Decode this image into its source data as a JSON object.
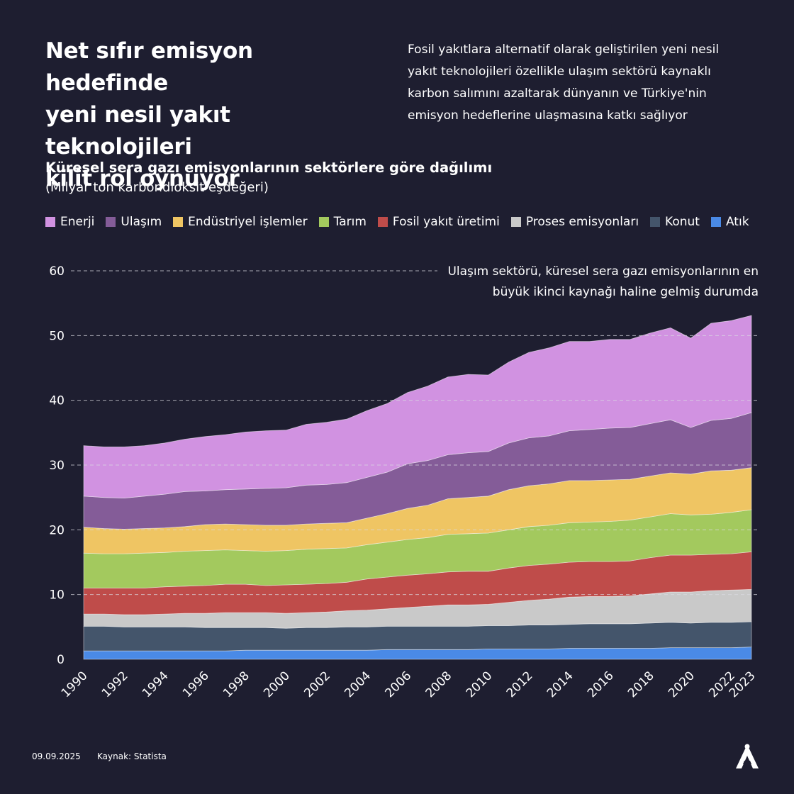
{
  "header": {
    "title": "Net sıfır emisyon hedefinde\nyeni nesil yakıt teknolojileri\nkilit rol oynuyor",
    "lead": "Fosil yakıtlara alternatif olarak geliştirilen yeni nesil\nyakıt teknolojileri özellikle ulaşım sektörü kaynaklı\nkarbon salımını azaltarak dünyanın ve Türkiye'nin\nemisyon hedeflerine ulaşmasına katkı sağlıyor"
  },
  "legend": [
    {
      "label": "Enerji",
      "color": "#d192e1"
    },
    {
      "label": "Ulaşım",
      "color": "#845c98"
    },
    {
      "label": "Endüstriyel işlemler",
      "color": "#efc563"
    },
    {
      "label": "Tarım",
      "color": "#a3c95e"
    },
    {
      "label": "Fosil yakıt üretimi",
      "color": "#bf4c4a"
    },
    {
      "label": "Proses emisyonları",
      "color": "#c9c9c9"
    },
    {
      "label": "Konut",
      "color": "#44556b"
    },
    {
      "label": "Atık",
      "color": "#4a8ae6"
    }
  ],
  "chart_data": {
    "type": "area",
    "stacked": true,
    "title": "Küresel sera gazı emisyonlarının sektörlere göre dağılımı",
    "subtitle": "(Milyar ton karbondioksit eşdeğeri)",
    "annotation": "Ulaşım sektörü, küresel sera gazı emisyonlarının en\nbüyük ikinci kaynağı haline gelmiş durumda",
    "x_ticks": [
      "1990",
      "1992",
      "1994",
      "1996",
      "1998",
      "2000",
      "2002",
      "2004",
      "2006",
      "2008",
      "2010",
      "2012",
      "2014",
      "2016",
      "2018",
      "2020",
      "2022",
      "2023"
    ],
    "ylim": [
      0,
      60
    ],
    "y_ticks": [
      "0",
      "10",
      "20",
      "30",
      "40",
      "50",
      "60"
    ],
    "grid": "horizontal dashed",
    "legend_position": "top",
    "x": [
      1990,
      1991,
      1992,
      1993,
      1994,
      1995,
      1996,
      1997,
      1998,
      1999,
      2000,
      2001,
      2002,
      2003,
      2004,
      2005,
      2006,
      2007,
      2008,
      2009,
      2010,
      2011,
      2012,
      2013,
      2014,
      2015,
      2016,
      2017,
      2018,
      2019,
      2020,
      2021,
      2022,
      2023
    ],
    "series": [
      {
        "name": "Atık",
        "color": "#4a8ae6",
        "values": [
          1.3,
          1.3,
          1.3,
          1.3,
          1.3,
          1.3,
          1.3,
          1.3,
          1.4,
          1.4,
          1.4,
          1.4,
          1.4,
          1.4,
          1.4,
          1.5,
          1.5,
          1.5,
          1.5,
          1.5,
          1.6,
          1.6,
          1.6,
          1.6,
          1.7,
          1.7,
          1.7,
          1.7,
          1.7,
          1.8,
          1.8,
          1.8,
          1.8,
          1.9
        ]
      },
      {
        "name": "Konut",
        "color": "#44556b",
        "values": [
          3.8,
          3.8,
          3.7,
          3.7,
          3.7,
          3.7,
          3.6,
          3.6,
          3.5,
          3.5,
          3.4,
          3.5,
          3.5,
          3.6,
          3.6,
          3.6,
          3.6,
          3.6,
          3.6,
          3.6,
          3.6,
          3.6,
          3.7,
          3.7,
          3.7,
          3.8,
          3.8,
          3.8,
          3.9,
          3.9,
          3.8,
          3.9,
          3.9,
          3.9
        ]
      },
      {
        "name": "Proses emisyonları",
        "color": "#c9c9c9",
        "values": [
          1.9,
          1.9,
          1.9,
          1.9,
          2.0,
          2.1,
          2.2,
          2.3,
          2.3,
          2.3,
          2.3,
          2.3,
          2.4,
          2.5,
          2.6,
          2.7,
          2.9,
          3.1,
          3.3,
          3.3,
          3.3,
          3.6,
          3.8,
          4.0,
          4.2,
          4.2,
          4.2,
          4.3,
          4.5,
          4.7,
          4.8,
          4.9,
          5.0,
          5.0
        ]
      },
      {
        "name": "Fosil yakıt üretimi",
        "color": "#bf4c4a",
        "values": [
          4.0,
          4.0,
          4.1,
          4.1,
          4.2,
          4.2,
          4.3,
          4.4,
          4.4,
          4.2,
          4.4,
          4.4,
          4.4,
          4.4,
          4.8,
          4.9,
          5.0,
          5.0,
          5.1,
          5.2,
          5.1,
          5.3,
          5.4,
          5.4,
          5.4,
          5.4,
          5.4,
          5.4,
          5.6,
          5.7,
          5.7,
          5.6,
          5.6,
          5.8
        ]
      },
      {
        "name": "Tarım",
        "color": "#a3c95e",
        "values": [
          5.4,
          5.3,
          5.3,
          5.4,
          5.3,
          5.4,
          5.4,
          5.3,
          5.2,
          5.3,
          5.3,
          5.4,
          5.4,
          5.3,
          5.3,
          5.4,
          5.5,
          5.6,
          5.8,
          5.8,
          5.9,
          5.9,
          6.0,
          6.0,
          6.1,
          6.1,
          6.2,
          6.3,
          6.3,
          6.4,
          6.2,
          6.2,
          6.4,
          6.5
        ]
      },
      {
        "name": "Endüstriyel işlemler",
        "color": "#efc563",
        "values": [
          4.0,
          3.9,
          3.8,
          3.8,
          3.8,
          3.8,
          4.0,
          4.0,
          4.0,
          4.0,
          3.9,
          3.9,
          3.9,
          3.9,
          4.1,
          4.4,
          4.8,
          5.0,
          5.5,
          5.6,
          5.7,
          6.2,
          6.3,
          6.4,
          6.5,
          6.4,
          6.4,
          6.3,
          6.3,
          6.3,
          6.3,
          6.7,
          6.5,
          6.5
        ]
      },
      {
        "name": "Ulaşım",
        "color": "#845c98",
        "values": [
          4.8,
          4.8,
          4.8,
          5.0,
          5.2,
          5.4,
          5.2,
          5.3,
          5.5,
          5.7,
          5.8,
          6.0,
          6.0,
          6.2,
          6.3,
          6.4,
          6.9,
          6.9,
          6.8,
          6.9,
          6.9,
          7.2,
          7.4,
          7.4,
          7.7,
          7.9,
          8.0,
          8.0,
          8.1,
          8.2,
          7.2,
          7.8,
          8.0,
          8.5
        ]
      },
      {
        "name": "Enerji",
        "color": "#d192e1",
        "values": [
          7.8,
          7.8,
          7.9,
          7.8,
          7.9,
          8.1,
          8.4,
          8.5,
          8.8,
          8.9,
          8.9,
          9.4,
          9.6,
          9.8,
          10.3,
          10.6,
          11.0,
          11.5,
          12.0,
          12.1,
          11.8,
          12.5,
          13.2,
          13.6,
          13.8,
          13.6,
          13.7,
          13.6,
          14.0,
          14.2,
          13.8,
          15.0,
          15.1,
          15.0
        ]
      }
    ]
  },
  "footer": {
    "date": "09.09.2025",
    "source": "Kaynak: Statista"
  },
  "logo": {
    "text": "AA"
  }
}
